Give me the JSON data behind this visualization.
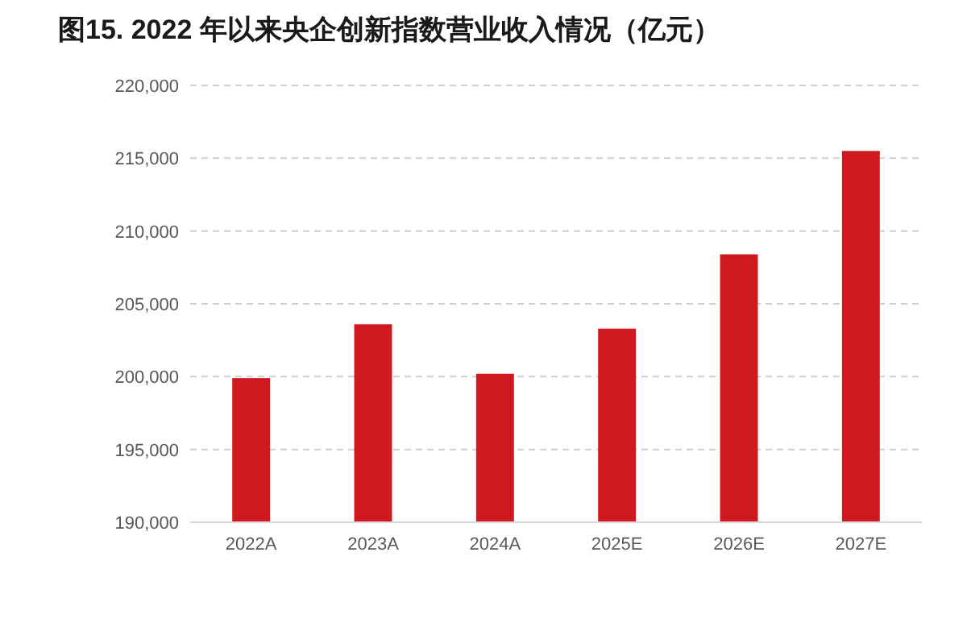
{
  "chart_data": {
    "type": "bar",
    "title": "图15. 2022 年以来央企创新指数营业收入情况（亿元）",
    "categories": [
      "2022A",
      "2023A",
      "2024A",
      "2025E",
      "2026E",
      "2027E"
    ],
    "values": [
      199900,
      203600,
      200200,
      203300,
      208400,
      215500
    ],
    "color": "#d0191f",
    "ylim": [
      190000,
      220000
    ],
    "yticks": [
      {
        "value": 190000,
        "label": "190,000"
      },
      {
        "value": 195000,
        "label": "195,000"
      },
      {
        "value": 200000,
        "label": "200,000"
      },
      {
        "value": 205000,
        "label": "205,000"
      },
      {
        "value": 210000,
        "label": "210,000"
      },
      {
        "value": 215000,
        "label": "215,000"
      },
      {
        "value": 220000,
        "label": "220,000"
      }
    ],
    "grid": "y"
  }
}
